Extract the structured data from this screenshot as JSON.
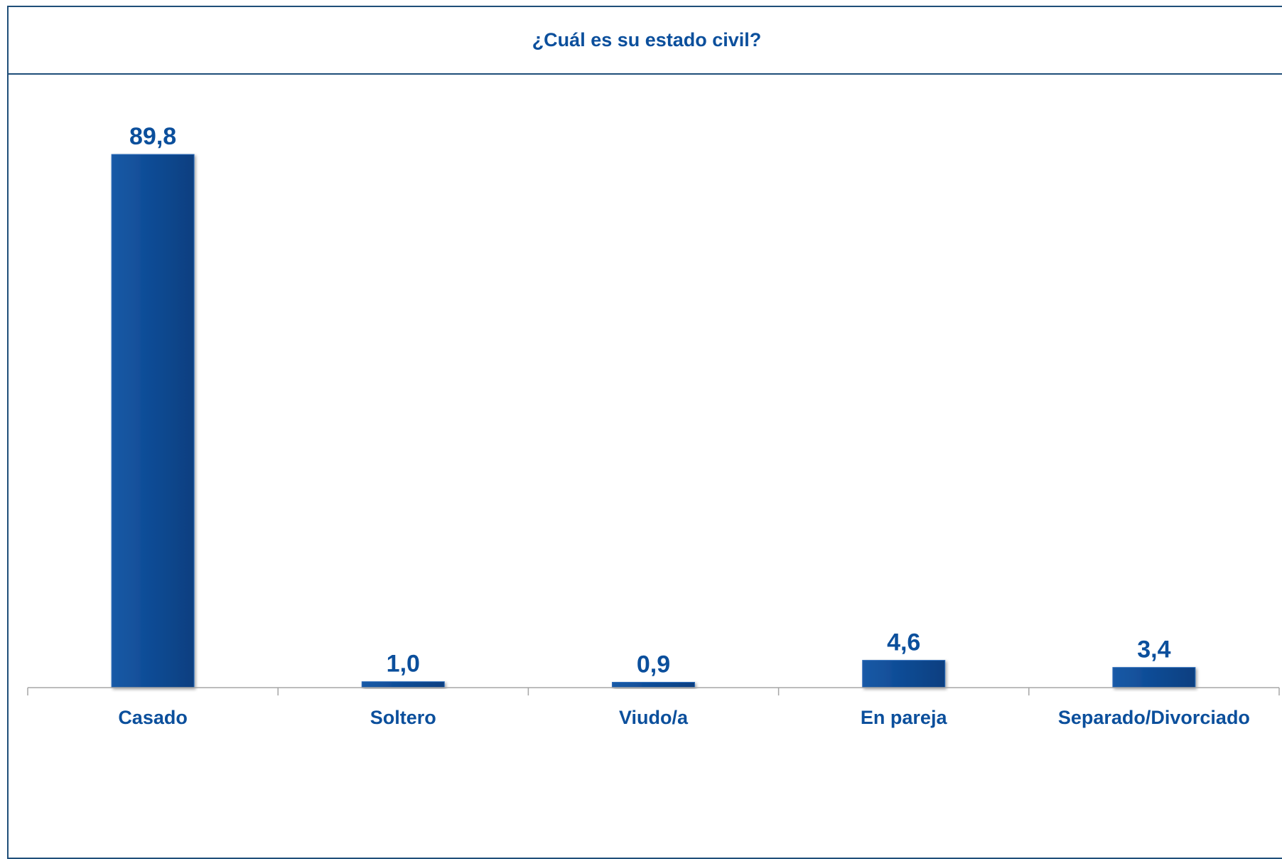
{
  "chart_data": {
    "type": "bar",
    "title": "¿Cuál es su estado civil?",
    "categories": [
      "Casado",
      "Soltero",
      "Viudo/a",
      "En pareja",
      "Separado/Divorciado"
    ],
    "values": [
      89.8,
      1.0,
      0.9,
      4.6,
      3.4
    ],
    "value_labels": [
      "89,8",
      "1,0",
      "0,9",
      "4,6",
      "3,4"
    ],
    "ylim": [
      0,
      100
    ],
    "grid": false,
    "legend": "none",
    "colors": {
      "bar": "#0f4c96",
      "bar_highlight": "#2e6dbb",
      "text": "#0b4f9c",
      "axis": "#a6a6a6",
      "frame": "#1f4e79"
    }
  }
}
